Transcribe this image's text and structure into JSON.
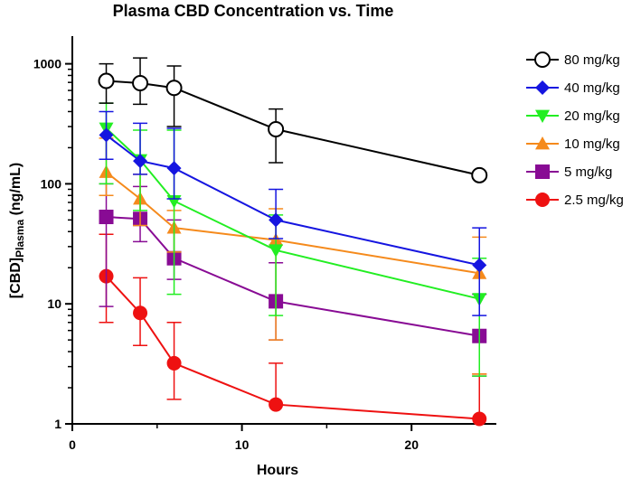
{
  "chart_data": {
    "type": "line",
    "title": "Plasma CBD Concentration vs. Time",
    "xlabel": "Hours",
    "ylabel": {
      "prefix": "[CBD]",
      "subscript": "Plasma",
      "suffix": " (ng/mL)"
    },
    "xlim": [
      0,
      25
    ],
    "ylim": [
      1,
      1500
    ],
    "yscale": "log",
    "x_ticks": [
      0,
      10,
      20
    ],
    "y_ticks": [
      1,
      10,
      100,
      1000
    ],
    "legend_position": "right",
    "grid": false,
    "x": [
      2,
      4,
      6,
      12,
      24
    ],
    "series": [
      {
        "name": "80 mg/kg",
        "color": "#000000",
        "marker": "open-circle",
        "values": [
          720,
          690,
          630,
          285,
          118
        ],
        "err_upper": [
          1000,
          1120,
          960,
          420,
          null
        ],
        "err_lower": [
          470,
          460,
          300,
          150,
          null
        ]
      },
      {
        "name": "40 mg/kg",
        "color": "#1515e0",
        "marker": "diamond",
        "values": [
          255,
          155,
          135,
          50,
          21
        ],
        "err_upper": [
          400,
          320,
          290,
          90,
          43
        ],
        "err_lower": [
          160,
          120,
          75,
          35,
          8
        ]
      },
      {
        "name": "20 mg/kg",
        "color": "#22ee22",
        "marker": "triangle-down",
        "values": [
          290,
          158,
          72,
          28,
          11
        ],
        "err_upper": [
          470,
          280,
          280,
          55,
          24
        ],
        "err_lower": [
          100,
          60,
          12,
          8,
          2.5
        ]
      },
      {
        "name": "10 mg/kg",
        "color": "#f58a1c",
        "marker": "triangle-up",
        "values": [
          125,
          75,
          43,
          34,
          18
        ],
        "err_upper": [
          240,
          120,
          60,
          62,
          36
        ],
        "err_lower": [
          80,
          45,
          27,
          5,
          2.6
        ]
      },
      {
        "name": "5 mg/kg",
        "color": "#880b94",
        "marker": "square",
        "values": [
          53,
          51,
          24,
          10.5,
          5.4
        ],
        "err_upper": [
          100,
          95,
          50,
          22,
          12
        ],
        "err_lower": [
          9.5,
          33,
          16,
          5,
          2.5
        ]
      },
      {
        "name": "2.5 mg/kg",
        "color": "#ee1111",
        "marker": "circle",
        "values": [
          17,
          8.4,
          3.2,
          1.45,
          1.1
        ],
        "err_upper": [
          38,
          16.5,
          7,
          3.2,
          2.6
        ],
        "err_lower": [
          7,
          4.5,
          1.6,
          null,
          null
        ]
      }
    ]
  }
}
